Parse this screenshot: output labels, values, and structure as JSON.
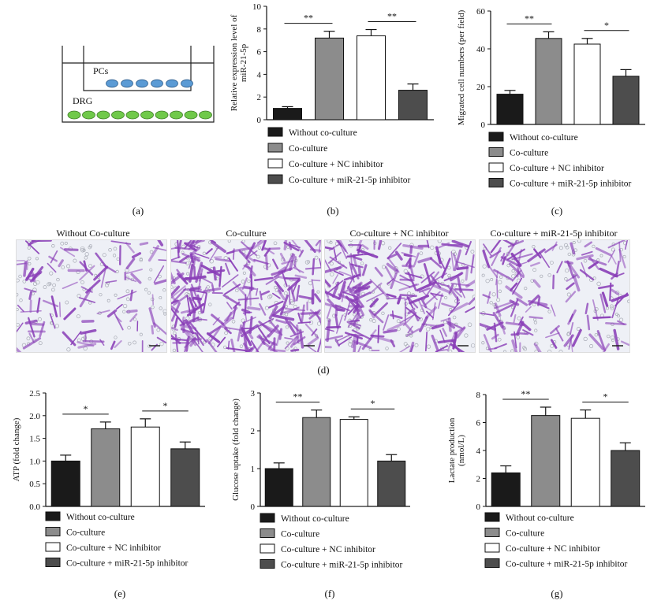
{
  "panel_letters": [
    "(a)",
    "(b)",
    "(c)",
    "(d)",
    "(e)",
    "(f)",
    "(g)"
  ],
  "schematic": {
    "top_label": "PCs",
    "bottom_label": "DRG",
    "top_color": "#5b9bd5",
    "bottom_color": "#70c94a"
  },
  "legend": [
    "Without co-culture",
    "Co-culture",
    "Co-culture + NC inhibitor",
    "Co-culture + miR-21-5p inhibitor"
  ],
  "legend_colors": [
    "#1a1a1a",
    "#8c8c8c",
    "#ffffff",
    "#4d4d4d"
  ],
  "micrographs": {
    "titles": [
      "Without Co-culture",
      "Co-culture",
      "Co-culture + NC inhibitor",
      "Co-culture + miR-21-5p inhibitor"
    ],
    "densities": [
      0.25,
      1.0,
      0.85,
      0.4
    ],
    "stain_color": "#8a3fb8"
  },
  "chart_data": [
    {
      "id": "b",
      "type": "bar",
      "categories": [
        "Without co-culture",
        "Co-culture",
        "Co-culture + NC inhibitor",
        "Co-culture + miR-21-5p inhibitor"
      ],
      "values": [
        1.0,
        7.2,
        7.4,
        2.6
      ],
      "errors": [
        0.15,
        0.6,
        0.55,
        0.55
      ],
      "ylabel": "Relative expression level of miR-21-5p",
      "ylim": [
        0,
        10
      ],
      "yticks": [
        0,
        2,
        4,
        6,
        8,
        10
      ],
      "significance": [
        {
          "from": 0,
          "to": 1,
          "label": "**"
        },
        {
          "from": 2,
          "to": 3,
          "label": "**"
        }
      ]
    },
    {
      "id": "c",
      "type": "bar",
      "categories": [
        "Without co-culture",
        "Co-culture",
        "Co-culture + NC inhibitor",
        "Co-culture + miR-21-5p inhibitor"
      ],
      "values": [
        16,
        45.5,
        42.5,
        25.5
      ],
      "errors": [
        2,
        3.5,
        3,
        3.5
      ],
      "ylabel": "Migrated cell numbers (per field)",
      "ylim": [
        0,
        60
      ],
      "yticks": [
        0,
        20,
        40,
        60
      ],
      "significance": [
        {
          "from": 0,
          "to": 1,
          "label": "**"
        },
        {
          "from": 2,
          "to": 3,
          "label": "*"
        }
      ]
    },
    {
      "id": "e",
      "type": "bar",
      "categories": [
        "Without co-culture",
        "Co-culture",
        "Co-culture + NC inhibitor",
        "Co-culture + miR-21-5p inhibitor"
      ],
      "values": [
        1.0,
        1.71,
        1.75,
        1.27
      ],
      "errors": [
        0.13,
        0.15,
        0.18,
        0.15
      ],
      "ylabel": "ATP (fold change)",
      "ylim": [
        0,
        2.5
      ],
      "yticks": [
        "0.0",
        "0.5",
        "1.0",
        "1.5",
        "2.0",
        "2.5"
      ],
      "significance": [
        {
          "from": 0,
          "to": 1,
          "label": "*"
        },
        {
          "from": 2,
          "to": 3,
          "label": "*"
        }
      ]
    },
    {
      "id": "f",
      "type": "bar",
      "categories": [
        "Without co-culture",
        "Co-culture",
        "Co-culture + NC inhibitor",
        "Co-culture + miR-21-5p inhibitor"
      ],
      "values": [
        1.0,
        2.35,
        2.3,
        1.2
      ],
      "errors": [
        0.15,
        0.2,
        0.07,
        0.17
      ],
      "ylabel": "Glucose uptake (fold change)",
      "ylim": [
        0,
        3
      ],
      "yticks": [
        0,
        1,
        2,
        3
      ],
      "significance": [
        {
          "from": 0,
          "to": 1,
          "label": "**"
        },
        {
          "from": 2,
          "to": 3,
          "label": "*"
        }
      ]
    },
    {
      "id": "g",
      "type": "bar",
      "categories": [
        "Without co-culture",
        "Co-culture",
        "Co-culture + NC inhibitor",
        "Co-culture + miR-21-5p inhibitor"
      ],
      "values": [
        2.4,
        6.5,
        6.3,
        4.0
      ],
      "errors": [
        0.5,
        0.6,
        0.6,
        0.55
      ],
      "ylabel": "Lactate production (nmol/L)",
      "ylim": [
        0,
        8
      ],
      "yticks": [
        0,
        2,
        4,
        6,
        8
      ],
      "significance": [
        {
          "from": 0,
          "to": 1,
          "label": "**"
        },
        {
          "from": 2,
          "to": 3,
          "label": "*"
        }
      ]
    }
  ]
}
